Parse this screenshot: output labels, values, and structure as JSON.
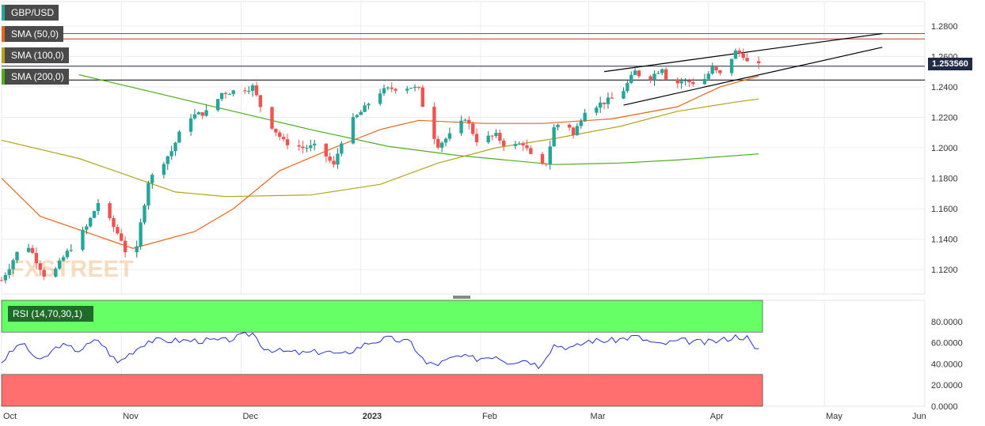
{
  "symbol": "GBP/USD",
  "indicators": [
    {
      "label": "SMA (50,0)",
      "color": "#e8651a"
    },
    {
      "label": "SMA (100,0)",
      "color": "#b5a21a"
    },
    {
      "label": "SMA (200,0)",
      "color": "#4caf1a"
    }
  ],
  "rsi_label": "RSI (14,70,30,1)",
  "last_price": "1.253560",
  "watermark": "FXSTREET",
  "colors": {
    "up": "#26a69a",
    "up_dark": "#1b7a5e",
    "down": "#ef5350",
    "rsi_line": "#2233cc",
    "overbought": "#66ff66",
    "oversold": "#ff6f6f",
    "resistance": "#c0392b",
    "support_line": "#000000",
    "last_price_line": "#1f2b46"
  },
  "chart_data": [
    {
      "type": "candlestick",
      "title": "GBP/USD",
      "x_labels": [
        "Oct",
        "Nov",
        "Dec",
        "2023",
        "Feb",
        "Mar",
        "Apr",
        "May",
        "Jun"
      ],
      "y_ticks": [
        "1.2800",
        "1.2600",
        "1.2400",
        "1.2200",
        "1.2000",
        "1.1800",
        "1.1600",
        "1.1400",
        "1.1200"
      ],
      "ylim": [
        1.104,
        1.296
      ],
      "horizontal_levels": [
        1.275,
        1.2715,
        1.2536,
        1.2445
      ],
      "anchors": [
        {
          "t": 0,
          "c": 1.113
        },
        {
          "t": 6,
          "c": 1.14
        },
        {
          "t": 12,
          "c": 1.112
        },
        {
          "t": 16,
          "c": 1.128
        },
        {
          "t": 22,
          "c": 1.148
        },
        {
          "t": 25,
          "c": 1.164
        },
        {
          "t": 31,
          "c": 1.14
        },
        {
          "t": 34,
          "c": 1.117
        },
        {
          "t": 36,
          "c": 1.15
        },
        {
          "t": 38,
          "c": 1.178
        },
        {
          "t": 44,
          "c": 1.198
        },
        {
          "t": 48,
          "c": 1.22
        },
        {
          "t": 54,
          "c": 1.224
        },
        {
          "t": 57,
          "c": 1.236
        },
        {
          "t": 62,
          "c": 1.238
        },
        {
          "t": 65,
          "c": 1.24
        },
        {
          "t": 68,
          "c": 1.221
        },
        {
          "t": 73,
          "c": 1.204
        },
        {
          "t": 78,
          "c": 1.2
        },
        {
          "t": 82,
          "c": 1.201
        },
        {
          "t": 86,
          "c": 1.188
        },
        {
          "t": 89,
          "c": 1.213
        },
        {
          "t": 94,
          "c": 1.226
        },
        {
          "t": 97,
          "c": 1.236
        },
        {
          "t": 101,
          "c": 1.239
        },
        {
          "t": 106,
          "c": 1.24
        },
        {
          "t": 108,
          "c": 1.238
        },
        {
          "t": 110,
          "c": 1.218
        },
        {
          "t": 113,
          "c": 1.202
        },
        {
          "t": 118,
          "c": 1.212
        },
        {
          "t": 120,
          "c": 1.22
        },
        {
          "t": 123,
          "c": 1.205
        },
        {
          "t": 128,
          "c": 1.208
        },
        {
          "t": 131,
          "c": 1.2
        },
        {
          "t": 135,
          "c": 1.203
        },
        {
          "t": 139,
          "c": 1.186
        },
        {
          "t": 141,
          "c": 1.19
        },
        {
          "t": 143,
          "c": 1.213
        },
        {
          "t": 146,
          "c": 1.22
        },
        {
          "t": 148,
          "c": 1.208
        },
        {
          "t": 151,
          "c": 1.225
        },
        {
          "t": 154,
          "c": 1.228
        },
        {
          "t": 158,
          "c": 1.232
        },
        {
          "t": 161,
          "c": 1.238
        },
        {
          "t": 164,
          "c": 1.25
        },
        {
          "t": 167,
          "c": 1.244
        },
        {
          "t": 171,
          "c": 1.253
        },
        {
          "t": 173,
          "c": 1.24
        },
        {
          "t": 176,
          "c": 1.244
        },
        {
          "t": 181,
          "c": 1.242
        },
        {
          "t": 184,
          "c": 1.252
        },
        {
          "t": 186,
          "c": 1.248
        },
        {
          "t": 190,
          "c": 1.263
        },
        {
          "t": 192,
          "c": 1.261
        },
        {
          "t": 194,
          "c": 1.251
        },
        {
          "t": 196,
          "c": 1.2536
        }
      ],
      "sma_50": [
        [
          0,
          1.18
        ],
        [
          10,
          1.155
        ],
        [
          34,
          1.134
        ],
        [
          50,
          1.145
        ],
        [
          60,
          1.16
        ],
        [
          72,
          1.185
        ],
        [
          86,
          1.2
        ],
        [
          98,
          1.212
        ],
        [
          108,
          1.218
        ],
        [
          125,
          1.216
        ],
        [
          140,
          1.216
        ],
        [
          158,
          1.219
        ],
        [
          175,
          1.227
        ],
        [
          186,
          1.24
        ],
        [
          196,
          1.247
        ]
      ],
      "sma_100": [
        [
          0,
          1.205
        ],
        [
          20,
          1.193
        ],
        [
          45,
          1.171
        ],
        [
          58,
          1.168
        ],
        [
          80,
          1.169
        ],
        [
          98,
          1.176
        ],
        [
          113,
          1.19
        ],
        [
          128,
          1.2
        ],
        [
          143,
          1.206
        ],
        [
          160,
          1.214
        ],
        [
          175,
          1.224
        ],
        [
          190,
          1.23
        ],
        [
          196,
          1.232
        ]
      ],
      "sma_200": [
        [
          20,
          1.248
        ],
        [
          40,
          1.236
        ],
        [
          60,
          1.224
        ],
        [
          80,
          1.212
        ],
        [
          100,
          1.201
        ],
        [
          118,
          1.195
        ],
        [
          143,
          1.189
        ],
        [
          160,
          1.19
        ],
        [
          175,
          1.192
        ],
        [
          196,
          1.196
        ]
      ],
      "wedge_upper": [
        [
          156,
          1.25
        ],
        [
          228,
          1.275
        ]
      ],
      "wedge_lower": [
        [
          161,
          1.228
        ],
        [
          228,
          1.266
        ]
      ]
    },
    {
      "type": "line",
      "title": "RSI (14,70,30,1)",
      "y_ticks": [
        "80.0000",
        "60.0000",
        "40.0000",
        "20.0000",
        "0.0000"
      ],
      "ylim": [
        0,
        100
      ],
      "overbought": 70,
      "oversold": 30,
      "anchors": [
        {
          "t": 0,
          "v": 42
        },
        {
          "t": 5,
          "v": 60
        },
        {
          "t": 10,
          "v": 42
        },
        {
          "t": 15,
          "v": 58
        },
        {
          "t": 20,
          "v": 53
        },
        {
          "t": 25,
          "v": 63
        },
        {
          "t": 30,
          "v": 41
        },
        {
          "t": 34,
          "v": 52
        },
        {
          "t": 38,
          "v": 62
        },
        {
          "t": 45,
          "v": 62
        },
        {
          "t": 50,
          "v": 62
        },
        {
          "t": 58,
          "v": 62
        },
        {
          "t": 65,
          "v": 69
        },
        {
          "t": 68,
          "v": 55
        },
        {
          "t": 72,
          "v": 52
        },
        {
          "t": 78,
          "v": 50
        },
        {
          "t": 84,
          "v": 52
        },
        {
          "t": 88,
          "v": 48
        },
        {
          "t": 95,
          "v": 60
        },
        {
          "t": 100,
          "v": 64
        },
        {
          "t": 106,
          "v": 60
        },
        {
          "t": 110,
          "v": 40
        },
        {
          "t": 113,
          "v": 40
        },
        {
          "t": 118,
          "v": 47
        },
        {
          "t": 123,
          "v": 45
        },
        {
          "t": 128,
          "v": 48
        },
        {
          "t": 131,
          "v": 42
        },
        {
          "t": 136,
          "v": 44
        },
        {
          "t": 139,
          "v": 38
        },
        {
          "t": 143,
          "v": 58
        },
        {
          "t": 148,
          "v": 55
        },
        {
          "t": 152,
          "v": 62
        },
        {
          "t": 158,
          "v": 62
        },
        {
          "t": 164,
          "v": 66
        },
        {
          "t": 170,
          "v": 58
        },
        {
          "t": 176,
          "v": 62
        },
        {
          "t": 182,
          "v": 60
        },
        {
          "t": 186,
          "v": 62
        },
        {
          "t": 190,
          "v": 66
        },
        {
          "t": 193,
          "v": 65
        },
        {
          "t": 195,
          "v": 53
        },
        {
          "t": 196,
          "v": 55
        }
      ]
    }
  ]
}
